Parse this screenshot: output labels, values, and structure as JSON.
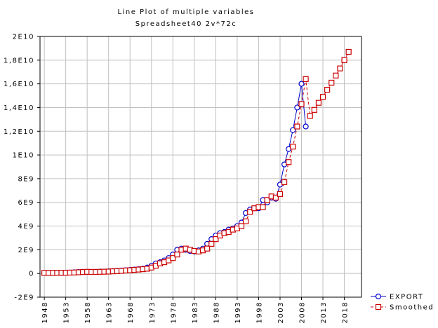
{
  "chart_data": {
    "type": "line",
    "title": "Line Plot of multiple variables",
    "subtitle": "Spreadsheet40 2v*72c",
    "xlim": [
      1947,
      2022
    ],
    "xticks": [
      1948,
      1953,
      1958,
      1963,
      1968,
      1973,
      1978,
      1983,
      1988,
      1993,
      1998,
      2003,
      2008,
      2013,
      2018
    ],
    "ylim": [
      -2000000000.0,
      20000000000.0
    ],
    "yticks": [
      {
        "value": -2000000000.0,
        "label": "-2E9"
      },
      0,
      {
        "value": 2000000000.0,
        "label": "2E9"
      },
      {
        "value": 4000000000.0,
        "label": "4E9"
      },
      {
        "value": 6000000000.0,
        "label": "6E9"
      },
      {
        "value": 8000000000.0,
        "label": "8E9"
      },
      {
        "value": 10000000000.0,
        "label": "1E10"
      },
      {
        "value": 12000000000.0,
        "label": "1,2E10"
      },
      {
        "value": 14000000000.0,
        "label": "1,4E10"
      },
      {
        "value": 16000000000.0,
        "label": "1,6E10"
      },
      {
        "value": 18000000000.0,
        "label": "1,8E10"
      },
      {
        "value": 20000000000.0,
        "label": "2E10"
      }
    ],
    "grid": true,
    "legend": "bottom-right",
    "series": [
      {
        "name": "EXPORT",
        "color": "#0000cc",
        "marker": "circle",
        "dashed": false,
        "x": [
          1948,
          1949,
          1950,
          1951,
          1952,
          1953,
          1954,
          1955,
          1956,
          1957,
          1958,
          1959,
          1960,
          1961,
          1962,
          1963,
          1964,
          1965,
          1966,
          1967,
          1968,
          1969,
          1970,
          1971,
          1972,
          1973,
          1974,
          1975,
          1976,
          1977,
          1978,
          1979,
          1980,
          1981,
          1982,
          1983,
          1984,
          1985,
          1986,
          1987,
          1988,
          1989,
          1990,
          1991,
          1992,
          1993,
          1994,
          1995,
          1996,
          1997,
          1998,
          1999,
          2000,
          2001,
          2002,
          2003,
          2004,
          2005,
          2006,
          2007,
          2008,
          2009
        ],
        "values": [
          50000000.0,
          50000000.0,
          50000000.0,
          60000000.0,
          60000000.0,
          70000000.0,
          80000000.0,
          100000000.0,
          120000000.0,
          140000000.0,
          130000000.0,
          130000000.0,
          140000000.0,
          150000000.0,
          160000000.0,
          180000000.0,
          200000000.0,
          220000000.0,
          250000000.0,
          270000000.0,
          300000000.0,
          330000000.0,
          360000000.0,
          400000000.0,
          500000000.0,
          650000000.0,
          850000000.0,
          950000000.0,
          1100000000.0,
          1300000000.0,
          1600000000.0,
          2000000000.0,
          2100000000.0,
          2000000000.0,
          1900000000.0,
          1850000000.0,
          1950000000.0,
          2100000000.0,
          2500000000.0,
          2900000000.0,
          3200000000.0,
          3400000000.0,
          3500000000.0,
          3700000000.0,
          3800000000.0,
          4000000000.0,
          4300000000.0,
          5100000000.0,
          5400000000.0,
          5500000000.0,
          5500000000.0,
          6200000000.0,
          6000000000.0,
          6400000000.0,
          6300000000.0,
          7500000000.0,
          9200000000.0,
          10500000000.0,
          12100000000.0,
          14000000000.0,
          16000000000.0,
          12400000000.0
        ]
      },
      {
        "name": "Smoothed",
        "color": "#cc0000",
        "marker": "square",
        "dashed": true,
        "x": [
          1948,
          1949,
          1950,
          1951,
          1952,
          1953,
          1954,
          1955,
          1956,
          1957,
          1958,
          1959,
          1960,
          1961,
          1962,
          1963,
          1964,
          1965,
          1966,
          1967,
          1968,
          1969,
          1970,
          1971,
          1972,
          1973,
          1974,
          1975,
          1976,
          1977,
          1978,
          1979,
          1980,
          1981,
          1982,
          1983,
          1984,
          1985,
          1986,
          1987,
          1988,
          1989,
          1990,
          1991,
          1992,
          1993,
          1994,
          1995,
          1996,
          1997,
          1998,
          1999,
          2000,
          2001,
          2002,
          2003,
          2004,
          2005,
          2006,
          2007,
          2008,
          2009,
          2010,
          2011,
          2012,
          2013,
          2014,
          2015,
          2016,
          2017,
          2018,
          2019
        ],
        "values": [
          50000000.0,
          50000000.0,
          50000000.0,
          50000000.0,
          60000000.0,
          60000000.0,
          70000000.0,
          80000000.0,
          100000000.0,
          120000000.0,
          140000000.0,
          130000000.0,
          130000000.0,
          140000000.0,
          150000000.0,
          160000000.0,
          180000000.0,
          200000000.0,
          220000000.0,
          250000000.0,
          270000000.0,
          300000000.0,
          330000000.0,
          360000000.0,
          400000000.0,
          500000000.0,
          650000000.0,
          850000000.0,
          950000000.0,
          1100000000.0,
          1300000000.0,
          1600000000.0,
          2000000000.0,
          2100000000.0,
          2000000000.0,
          1900000000.0,
          1850000000.0,
          1950000000.0,
          2100000000.0,
          2500000000.0,
          2900000000.0,
          3200000000.0,
          3400000000.0,
          3500000000.0,
          3700000000.0,
          3800000000.0,
          4000000000.0,
          4400000000.0,
          5200000000.0,
          5500000000.0,
          5600000000.0,
          5600000000.0,
          6200000000.0,
          6500000000.0,
          6400000000.0,
          6700000000.0,
          7700000000.0,
          9400000000.0,
          10700000000.0,
          12400000000.0,
          14300000000.0,
          16400000000.0,
          13300000000.0,
          13800000000.0,
          14400000000.0,
          14900000000.0,
          15500000000.0,
          16100000000.0,
          16700000000.0,
          17300000000.0,
          18000000000.0,
          18700000000.0
        ]
      }
    ]
  }
}
